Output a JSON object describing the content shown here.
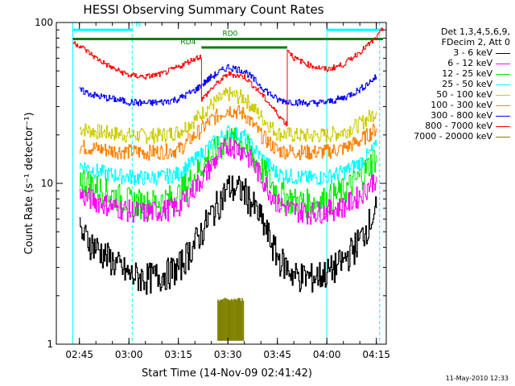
{
  "chart_data": {
    "type": "line",
    "title": "HESSI Observing Summary Count Rates",
    "xlabel": "Start Time (14-Nov-09 02:41:42)",
    "ylabel": "Count Rate (s⁻¹ detector⁻¹)",
    "y_scale": "log",
    "ylim": [
      1,
      100
    ],
    "yticks": [
      "1",
      "10",
      "100"
    ],
    "xlim_minutes_after_start": [
      -3.7,
      96.3
    ],
    "xticks": [
      "02:45",
      "03:00",
      "03:15",
      "03:30",
      "03:45",
      "04:00",
      "04:15"
    ],
    "legend_header": [
      "Det 1,3,4,5,6,9,",
      "FDecim 2, Att 0"
    ],
    "legend_placement": "right",
    "series": [
      {
        "name": "3 - 6 keV",
        "color": "#000000",
        "x": [
          "02:45",
          "02:50",
          "02:55",
          "03:00",
          "03:05",
          "03:10",
          "03:15",
          "03:20",
          "03:25",
          "03:30",
          "03:35",
          "03:40",
          "03:45",
          "03:50",
          "03:55",
          "04:00",
          "04:05",
          "04:10",
          "04:15"
        ],
        "values": [
          5.0,
          4.0,
          3.3,
          2.7,
          2.6,
          2.7,
          3.0,
          4.3,
          6.5,
          9.5,
          9.0,
          6.0,
          3.5,
          2.7,
          2.6,
          2.8,
          3.3,
          4.5,
          7.0
        ]
      },
      {
        "name": "6 - 12 keV",
        "color": "#ff00ff",
        "x": [
          "02:45",
          "02:50",
          "02:55",
          "03:00",
          "03:05",
          "03:10",
          "03:15",
          "03:20",
          "03:25",
          "03:30",
          "03:35",
          "03:40",
          "03:45",
          "03:50",
          "03:55",
          "04:00",
          "04:05",
          "04:10",
          "04:15"
        ],
        "values": [
          8.5,
          7.8,
          7.2,
          6.8,
          6.6,
          6.8,
          7.2,
          9.5,
          13.0,
          17.5,
          16.0,
          11.0,
          7.5,
          6.8,
          6.6,
          6.8,
          7.2,
          8.5,
          11.0
        ]
      },
      {
        "name": "12 - 25 keV",
        "color": "#00ee00",
        "x": [
          "02:45",
          "02:50",
          "02:55",
          "03:00",
          "03:05",
          "03:10",
          "03:15",
          "03:20",
          "03:25",
          "03:30",
          "03:35",
          "03:40",
          "03:45",
          "03:50",
          "03:55",
          "04:00",
          "04:05",
          "04:10",
          "04:15"
        ],
        "values": [
          11.0,
          9.5,
          8.5,
          7.8,
          7.5,
          7.8,
          8.5,
          11.5,
          15.0,
          19.0,
          17.5,
          12.5,
          8.8,
          7.8,
          7.6,
          8.0,
          9.0,
          11.0,
          15.0
        ]
      },
      {
        "name": "25 - 50 keV",
        "color": "#00ffff",
        "x": [
          "02:45",
          "02:50",
          "02:55",
          "03:00",
          "03:05",
          "03:10",
          "03:15",
          "03:20",
          "03:25",
          "03:30",
          "03:35",
          "03:40",
          "03:45",
          "03:50",
          "03:55",
          "04:00",
          "04:05",
          "04:10",
          "04:15"
        ],
        "values": [
          13.0,
          12.0,
          11.3,
          11.0,
          10.8,
          11.0,
          11.5,
          14.0,
          17.5,
          21.0,
          19.5,
          14.5,
          11.5,
          11.0,
          10.8,
          11.0,
          11.8,
          13.5,
          17.0
        ]
      },
      {
        "name": "50 - 100 keV",
        "color": "#cccc00",
        "x": [
          "02:45",
          "02:50",
          "02:55",
          "03:00",
          "03:05",
          "03:10",
          "03:15",
          "03:20",
          "03:25",
          "03:30",
          "03:35",
          "03:40",
          "03:45",
          "03:50",
          "03:55",
          "04:00",
          "04:05",
          "04:10",
          "04:15"
        ],
        "values": [
          22.0,
          21.0,
          20.5,
          20.0,
          19.8,
          20.0,
          21.0,
          25.0,
          31.0,
          36.0,
          34.0,
          26.0,
          20.5,
          20.0,
          19.8,
          20.0,
          21.0,
          23.5,
          28.0
        ]
      },
      {
        "name": "100 - 300 keV",
        "color": "#ff8000",
        "x": [
          "02:45",
          "02:50",
          "02:55",
          "03:00",
          "03:05",
          "03:10",
          "03:15",
          "03:20",
          "03:25",
          "03:30",
          "03:35",
          "03:40",
          "03:45",
          "03:50",
          "03:55",
          "04:00",
          "04:05",
          "04:10",
          "04:15"
        ],
        "values": [
          17.0,
          16.5,
          16.0,
          15.8,
          15.6,
          15.8,
          16.2,
          20.0,
          25.0,
          29.0,
          27.0,
          20.0,
          16.0,
          15.8,
          15.6,
          15.8,
          16.5,
          18.5,
          22.0
        ]
      },
      {
        "name": "300 - 800 keV",
        "color": "#0000ff",
        "x": [
          "02:45",
          "02:50",
          "02:55",
          "03:00",
          "03:05",
          "03:10",
          "03:15",
          "03:20",
          "03:25",
          "03:30",
          "03:35",
          "03:40",
          "03:45",
          "03:50",
          "03:55",
          "04:00",
          "04:05",
          "04:10",
          "04:15"
        ],
        "values": [
          38.0,
          35.0,
          33.5,
          32.0,
          31.5,
          32.0,
          33.5,
          38.0,
          46.0,
          53.0,
          50.0,
          40.0,
          33.0,
          32.0,
          31.5,
          32.0,
          34.0,
          38.5,
          46.0
        ]
      },
      {
        "name": "800 - 7000 keV",
        "color": "#ff0000",
        "x": [
          "02:43",
          "02:45",
          "02:50",
          "02:55",
          "03:00",
          "03:05",
          "03:10",
          "03:15",
          "03:20",
          "03:22",
          "03:22",
          "03:25",
          "03:30",
          "03:35",
          "03:40",
          "03:45",
          "03:48",
          "03:48",
          "03:50",
          "03:55",
          "04:00",
          "04:05",
          "04:10",
          "04:15",
          "04:17"
        ],
        "values": [
          75,
          72,
          60,
          52,
          47,
          46,
          48,
          53,
          60,
          62,
          33,
          39,
          48,
          46,
          36,
          27,
          23,
          68,
          60,
          54,
          51,
          55,
          66,
          80,
          92
        ]
      },
      {
        "name": "7000 - 20000 keV",
        "color": "#808000",
        "x": [
          "03:27",
          "03:28",
          "03:30",
          "03:32",
          "03:34",
          "03:35"
        ],
        "values": [
          1.3,
          1.9,
          1.9,
          1.9,
          1.9,
          1.4
        ]
      }
    ],
    "annotations": {
      "states": [
        {
          "label": "N",
          "color": "#00ffff",
          "segments": [
            [
              "02:43",
              "03:01"
            ],
            [
              "04:00",
              "04:17"
            ]
          ],
          "value": 90
        },
        {
          "label": "RD0",
          "color": "#008000",
          "segments": [
            [
              "02:43",
              "03:48"
            ],
            [
              "03:48",
              "04:17"
            ]
          ],
          "value": 79
        },
        {
          "label": "RD4",
          "color": "#008000",
          "segments": [
            [
              "03:22",
              "03:48"
            ]
          ],
          "value": 70
        }
      ],
      "vertical_lines": [
        {
          "x": "03:01",
          "color": "#00ffff",
          "style": "dashed"
        },
        {
          "x": "04:16",
          "color": "#00ffff",
          "style": "dashed"
        },
        {
          "x": "02:43",
          "color": "#00ffff",
          "style": "solid"
        },
        {
          "x": "04:00",
          "color": "#00ffff",
          "style": "solid"
        }
      ]
    },
    "grid": false
  },
  "footer_stamp": "11-May-2010 12:33"
}
